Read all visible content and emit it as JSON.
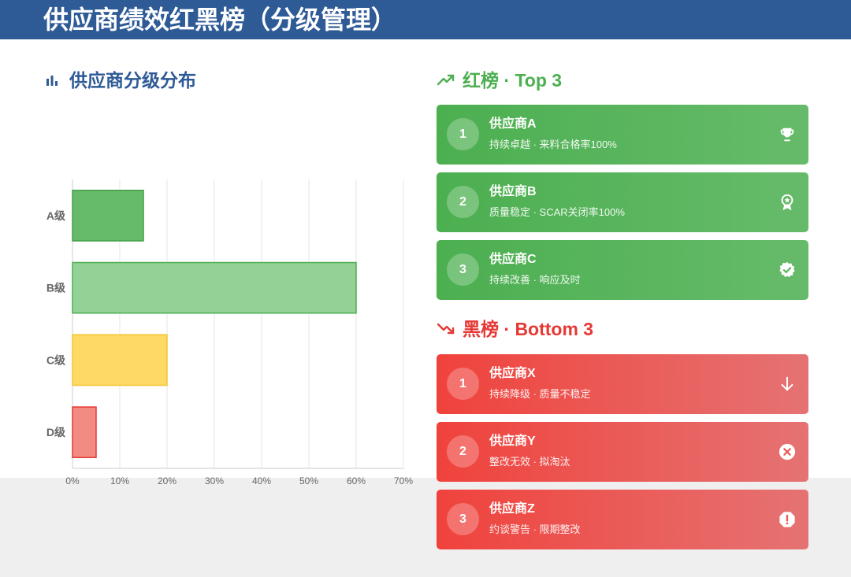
{
  "header": {
    "title": "供应商绩效红黑榜（分级管理）"
  },
  "distribution": {
    "title": "供应商分级分布",
    "icon": "bar-chart-icon"
  },
  "chart_data": {
    "type": "bar",
    "orientation": "horizontal",
    "categories": [
      "A级",
      "B级",
      "C级",
      "D级"
    ],
    "values": [
      15,
      60,
      20,
      5
    ],
    "colors": [
      "#66bb6a",
      "#94d196",
      "#ffd966",
      "#f28b82"
    ],
    "borders": [
      "#43a047",
      "#4caf50",
      "#f5c533",
      "#e53935"
    ],
    "xlim": [
      0,
      70
    ],
    "xticks": [
      "0%",
      "10%",
      "20%",
      "30%",
      "40%",
      "50%",
      "60%",
      "70%"
    ],
    "grid": true,
    "title": "",
    "xlabel": "",
    "ylabel": ""
  },
  "red_list": {
    "title": "红榜 · Top 3",
    "icon": "trending-up-icon",
    "color": "#4caf50",
    "items": [
      {
        "rank": "1",
        "name": "供应商A",
        "desc": "持续卓越 · 来料合格率100%",
        "icon": "trophy-icon"
      },
      {
        "rank": "2",
        "name": "供应商B",
        "desc": "质量稳定 · SCAR关闭率100%",
        "icon": "award-icon"
      },
      {
        "rank": "3",
        "name": "供应商C",
        "desc": "持续改善 · 响应及时",
        "icon": "verified-badge-icon"
      }
    ]
  },
  "black_list": {
    "title": "黑榜 · Bottom 3",
    "icon": "trending-down-icon",
    "color": "#e53935",
    "items": [
      {
        "rank": "1",
        "name": "供应商X",
        "desc": "持续降级 · 质量不稳定",
        "icon": "arrow-down-icon"
      },
      {
        "rank": "2",
        "name": "供应商Y",
        "desc": "整改无效 · 拟淘汰",
        "icon": "circle-x-icon"
      },
      {
        "rank": "3",
        "name": "供应商Z",
        "desc": "约谈警告 · 限期整改",
        "icon": "exclamation-octagon-icon"
      }
    ]
  }
}
